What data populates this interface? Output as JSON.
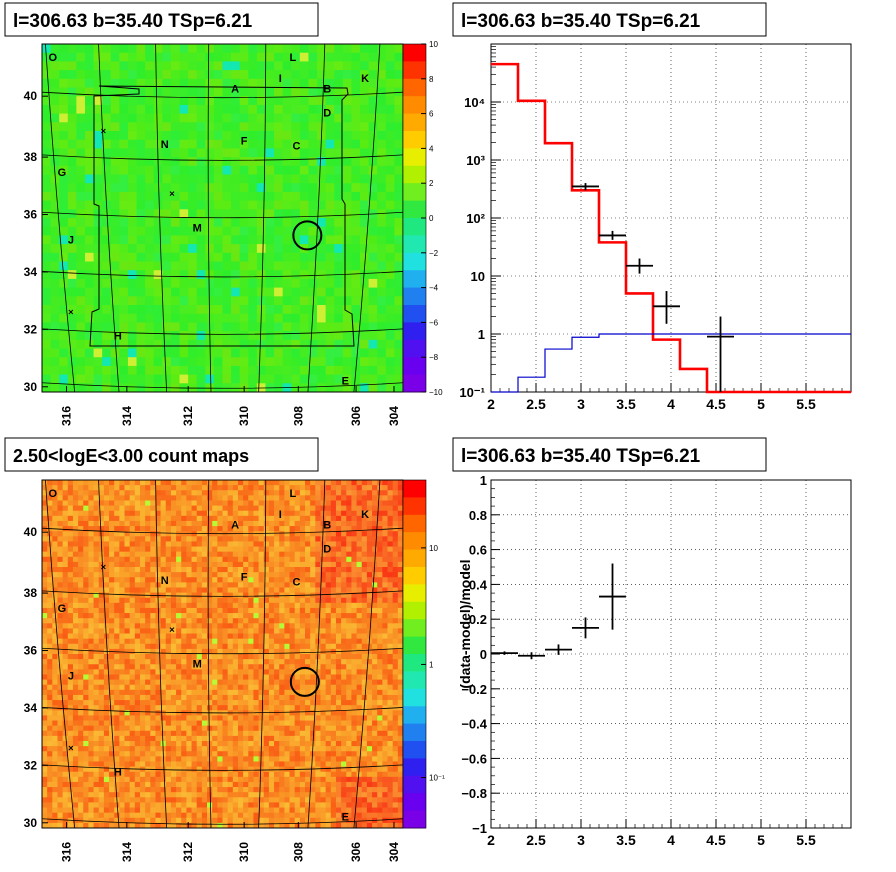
{
  "panels": {
    "tl_title": "l=306.63 b=35.40 TSp=6.21",
    "tr_title": "l=306.63 b=35.40 TSp=6.21",
    "bl_title": "2.50<logE<3.00 count maps",
    "br_title": "l=306.63 b=35.40 TSp=6.21"
  },
  "maps": {
    "x_ticks": [
      "316",
      "314",
      "312",
      "310",
      "308",
      "306",
      "304"
    ],
    "y_ticks": [
      "30",
      "32",
      "34",
      "36",
      "38",
      "40"
    ],
    "region_labels": [
      "O",
      "L",
      "I",
      "K",
      "A",
      "B",
      "D",
      "N",
      "F",
      "C",
      "G",
      "J",
      "M",
      "H",
      "E"
    ],
    "residual_colorbar_ticks": [
      "10",
      "8",
      "6",
      "4",
      "2",
      "0",
      "−2",
      "−4",
      "−6",
      "−8",
      "−10"
    ],
    "count_colorbar_ticks": [
      "10",
      "1",
      "10⁻¹"
    ],
    "colors": {
      "map_green": "#2ee84a",
      "map_orange": "#f5972a",
      "circle": "#000000"
    }
  },
  "chart_data": [
    {
      "type": "line",
      "title": "l=306.63 b=35.40 TSp=6.21",
      "xlabel": "",
      "ylabel": "",
      "xlim": [
        2,
        6
      ],
      "ylim": [
        0.1,
        100000
      ],
      "yscale": "log",
      "grid": true,
      "x_ticks": [
        "2",
        "2.5",
        "3",
        "3.5",
        "4",
        "4.5",
        "5",
        "5.5"
      ],
      "y_ticks": [
        "10⁻¹",
        "1",
        "10",
        "10²",
        "10³",
        "10⁴"
      ],
      "series": [
        {
          "kind": "step",
          "color": "#ff0000",
          "edges": [
            2.0,
            2.3,
            2.6,
            2.9,
            3.2,
            3.5,
            3.8,
            4.1,
            4.4,
            4.7,
            6.0
          ],
          "values": [
            45000,
            10500,
            1950,
            300,
            38,
            5,
            0.8,
            0.25,
            0.1,
            0.1
          ]
        },
        {
          "kind": "step",
          "color": "#0000cc",
          "edges": [
            2.0,
            2.3,
            2.6,
            2.9,
            3.2,
            3.5,
            3.8,
            4.1,
            4.4,
            4.7,
            6.0
          ],
          "values": [
            0.1,
            0.18,
            0.55,
            0.88,
            1.0,
            1.0,
            1.0,
            1.0,
            1.0,
            1.0
          ]
        },
        {
          "kind": "points",
          "color": "#000000",
          "x": [
            3.05,
            3.35,
            3.65,
            3.95,
            4.55
          ],
          "y": [
            350,
            50,
            15,
            3,
            0.9
          ],
          "xerr": [
            0.15,
            0.15,
            0.15,
            0.15,
            0.15
          ],
          "ylo": [
            300,
            42,
            11,
            1.5,
            0.1
          ],
          "yhi": [
            400,
            60,
            20,
            5.5,
            2.0
          ]
        }
      ]
    },
    {
      "type": "scatter",
      "title": "l=306.63 b=35.40 TSp=6.21",
      "xlabel": "",
      "ylabel": "(data-model)/model",
      "xlim": [
        2,
        6
      ],
      "ylim": [
        -1,
        1
      ],
      "grid": true,
      "x_ticks": [
        "2",
        "2.5",
        "3",
        "3.5",
        "4",
        "4.5",
        "5",
        "5.5"
      ],
      "y_ticks": [
        "−1",
        "−0.8",
        "−0.6",
        "−0.4",
        "−0.2",
        "0",
        "0.2",
        "0.4",
        "0.6",
        "0.8",
        "1"
      ],
      "series": [
        {
          "color": "#000000",
          "x": [
            2.15,
            2.45,
            2.75,
            3.05,
            3.35
          ],
          "y": [
            0.005,
            -0.01,
            0.025,
            0.15,
            0.33
          ],
          "xerr": [
            0.15,
            0.15,
            0.15,
            0.15,
            0.15
          ],
          "yerr": [
            0.01,
            0.02,
            0.03,
            0.06,
            0.19
          ]
        }
      ]
    }
  ]
}
